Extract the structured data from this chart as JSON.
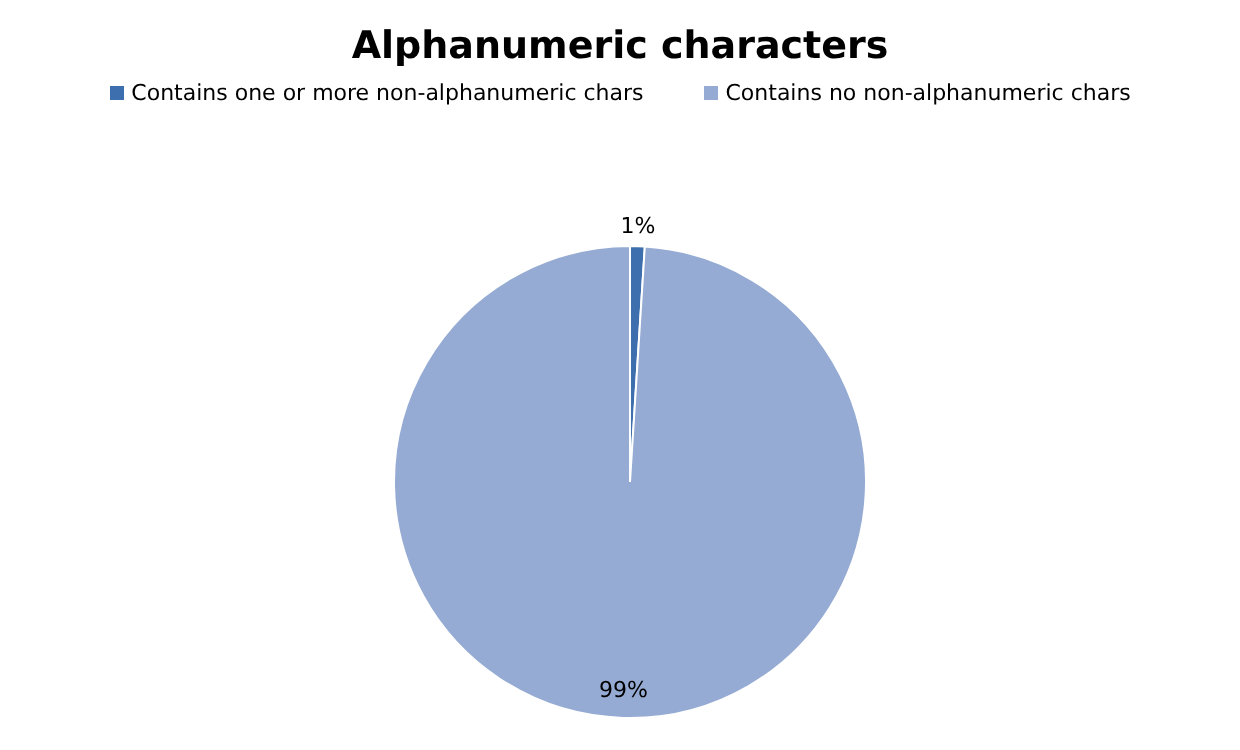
{
  "chart_data": {
    "type": "pie",
    "title": "Alphanumeric characters",
    "categories": [
      "Contains one or more non-alphanumeric chars",
      "Contains no non-alphanumeric chars"
    ],
    "values": [
      1,
      99
    ],
    "colors": [
      "#3d6eae",
      "#95abd3"
    ],
    "value_labels": [
      "1%",
      "99%"
    ],
    "legend": "top"
  }
}
